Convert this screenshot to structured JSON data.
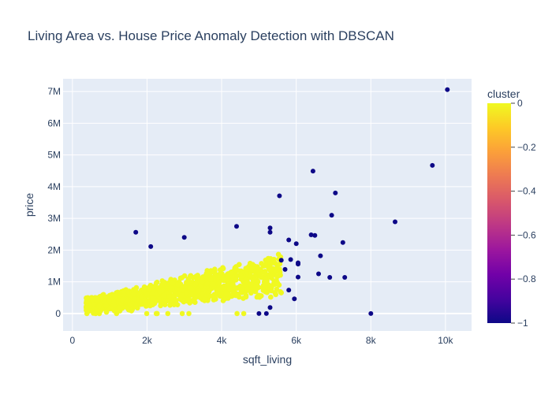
{
  "chart_data": {
    "type": "scatter",
    "title": "Living Area vs. House Price Anomaly Detection with DBSCAN",
    "xlabel": "sqft_living",
    "ylabel": "price",
    "xlim": [
      -250,
      10700
    ],
    "ylim": [
      -550000,
      7400000
    ],
    "x_ticks": [
      0,
      2000,
      4000,
      6000,
      8000,
      10000
    ],
    "x_tick_labels": [
      "0",
      "2k",
      "4k",
      "6k",
      "8k",
      "10k"
    ],
    "y_ticks": [
      0,
      1000000,
      2000000,
      3000000,
      4000000,
      5000000,
      6000000,
      7000000
    ],
    "y_tick_labels": [
      "0",
      "1M",
      "2M",
      "3M",
      "4M",
      "5M",
      "6M",
      "7M"
    ],
    "grid": true,
    "colorbar": {
      "title": "cluster",
      "range": [
        -1,
        0
      ],
      "ticks": [
        0,
        -0.2,
        -0.4,
        -0.6,
        -0.8,
        -1
      ],
      "tick_labels": [
        "0",
        "−0.2",
        "−0.4",
        "−0.6",
        "−0.8",
        "−1"
      ],
      "colorscale": [
        "#0d0887",
        "#46039f",
        "#7201a8",
        "#9c179e",
        "#bd3786",
        "#d8576b",
        "#ed7953",
        "#fb9f3a",
        "#fdca26",
        "#f0f921"
      ]
    },
    "cluster_0_region": {
      "cluster": 0,
      "sqft_living_range": [
        370,
        5600
      ],
      "price_range": [
        0,
        2450000
      ],
      "approx_points": 1200
    },
    "anomalies": {
      "cluster": -1,
      "points": [
        [
          1700,
          2560000
        ],
        [
          2100,
          2110000
        ],
        [
          3000,
          2400000
        ],
        [
          4400,
          2750000
        ],
        [
          5300,
          2700000
        ],
        [
          5300,
          2560000
        ],
        [
          5550,
          3710000
        ],
        [
          6450,
          4490000
        ],
        [
          7050,
          3800000
        ],
        [
          6950,
          3100000
        ],
        [
          9650,
          4670000
        ],
        [
          10050,
          7060000
        ],
        [
          8650,
          2890000
        ],
        [
          6400,
          2480000
        ],
        [
          6500,
          2460000
        ],
        [
          5800,
          2320000
        ],
        [
          6000,
          2200000
        ],
        [
          7250,
          2240000
        ],
        [
          5850,
          1700000
        ],
        [
          5600,
          1680000
        ],
        [
          6050,
          1600000
        ],
        [
          6050,
          1560000
        ],
        [
          6650,
          1820000
        ],
        [
          5700,
          1390000
        ],
        [
          6600,
          1250000
        ],
        [
          6050,
          1150000
        ],
        [
          6900,
          1140000
        ],
        [
          7300,
          1140000
        ],
        [
          5800,
          740000
        ],
        [
          5950,
          460000
        ],
        [
          5300,
          190000
        ],
        [
          5000,
          0
        ],
        [
          5200,
          0
        ],
        [
          8000,
          0
        ]
      ]
    }
  }
}
